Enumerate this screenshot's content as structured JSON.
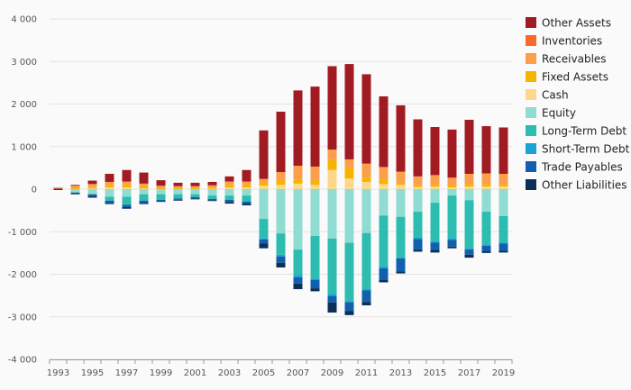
{
  "chart_data": {
    "type": "bar",
    "stacked": true,
    "categories": [
      "1993",
      "1994",
      "1995",
      "1996",
      "1997",
      "1998",
      "1999",
      "2000",
      "2001",
      "2002",
      "2003",
      "2004",
      "2005",
      "2006",
      "2007",
      "2008",
      "2009",
      "2010",
      "2011",
      "2012",
      "2013",
      "2014",
      "2015",
      "2016",
      "2017",
      "2018",
      "2019"
    ],
    "x_tick_labels": [
      "1993",
      "1995",
      "1997",
      "1999",
      "2001",
      "2003",
      "2005",
      "2007",
      "2009",
      "2011",
      "2013",
      "2015",
      "2017",
      "2019"
    ],
    "ylim": [
      -4000,
      4000
    ],
    "y_ticks": [
      -4000,
      -3000,
      -2000,
      -1000,
      0,
      1000,
      2000,
      3000,
      4000
    ],
    "y_tick_labels": [
      "-4 000",
      "-3 000",
      "-2 000",
      "-1 000",
      "0",
      "1 000",
      "2 000",
      "3 000",
      "4 000"
    ],
    "grid": true,
    "legend_position": "right",
    "positive_series": [
      {
        "name": "Cash",
        "color": "#fdd78a",
        "values": [
          0,
          0,
          20,
          40,
          40,
          20,
          0,
          0,
          0,
          10,
          40,
          40,
          80,
          100,
          130,
          100,
          450,
          250,
          170,
          120,
          100,
          50,
          60,
          40,
          60,
          60,
          60
        ]
      },
      {
        "name": "Fixed Assets",
        "color": "#f5b400",
        "values": [
          5,
          20,
          40,
          50,
          60,
          50,
          20,
          20,
          20,
          30,
          60,
          60,
          80,
          100,
          100,
          100,
          230,
          250,
          100,
          100,
          50,
          50,
          50,
          50,
          60,
          60,
          50
        ]
      },
      {
        "name": "Receivables",
        "color": "#fc9f4a",
        "values": [
          5,
          60,
          60,
          80,
          80,
          60,
          60,
          50,
          50,
          50,
          80,
          80,
          80,
          200,
          320,
          330,
          250,
          200,
          330,
          300,
          260,
          200,
          220,
          180,
          240,
          250,
          250
        ]
      },
      {
        "name": "Inventories",
        "color": "#fb6a28",
        "values": [
          0,
          0,
          0,
          0,
          0,
          0,
          0,
          0,
          0,
          0,
          0,
          0,
          0,
          0,
          0,
          0,
          0,
          0,
          0,
          0,
          0,
          0,
          0,
          0,
          0,
          0,
          0
        ]
      },
      {
        "name": "Other Assets",
        "color": "#a01c22",
        "values": [
          20,
          20,
          80,
          190,
          270,
          260,
          130,
          80,
          80,
          80,
          120,
          270,
          1140,
          1420,
          1770,
          1880,
          1960,
          2240,
          2100,
          1660,
          1560,
          1340,
          1130,
          1130,
          1270,
          1110,
          1090
        ]
      }
    ],
    "negative_series": [
      {
        "name": "Equity",
        "color": "#8fdcd3",
        "values": [
          0,
          -80,
          -120,
          -180,
          -180,
          -120,
          -120,
          -120,
          -120,
          -150,
          -150,
          -150,
          -700,
          -1040,
          -1420,
          -1100,
          -1160,
          -1260,
          -1030,
          -620,
          -650,
          -530,
          -320,
          -150,
          -260,
          -530,
          -630
        ]
      },
      {
        "name": "Long-Term Debt",
        "color": "#2dbdb0",
        "values": [
          0,
          0,
          0,
          -90,
          -190,
          -150,
          -130,
          -100,
          -70,
          -80,
          -100,
          -140,
          -450,
          -500,
          -600,
          -1000,
          -1300,
          -1360,
          -1320,
          -1200,
          -960,
          -600,
          -900,
          -1000,
          -1130,
          -770,
          -620
        ]
      },
      {
        "name": "Short-Term Debt",
        "color": "#1aa3d4",
        "values": [
          0,
          0,
          0,
          0,
          0,
          0,
          0,
          0,
          0,
          0,
          0,
          0,
          -30,
          -40,
          -50,
          -30,
          -50,
          -40,
          -30,
          -40,
          -20,
          -40,
          -40,
          -40,
          -30,
          -30,
          -30
        ]
      },
      {
        "name": "Trade Payables",
        "color": "#1060ad",
        "values": [
          0,
          -15,
          -50,
          -50,
          -50,
          -50,
          -30,
          -30,
          -30,
          -30,
          -50,
          -50,
          -100,
          -150,
          -150,
          -200,
          -150,
          -200,
          -270,
          -270,
          -300,
          -250,
          -170,
          -160,
          -120,
          -130,
          -170
        ]
      },
      {
        "name": "Other Liabilities",
        "color": "#0c2f57",
        "values": [
          -20,
          -25,
          -30,
          -30,
          -40,
          -30,
          -20,
          -20,
          -20,
          -20,
          -40,
          -40,
          -110,
          -110,
          -130,
          -70,
          -240,
          -100,
          -80,
          -60,
          -50,
          -50,
          -60,
          -40,
          -70,
          -40,
          -40
        ]
      }
    ],
    "legend": [
      {
        "name": "Other Assets",
        "color": "#a01c22"
      },
      {
        "name": "Inventories",
        "color": "#fb6a28"
      },
      {
        "name": "Receivables",
        "color": "#fc9f4a"
      },
      {
        "name": "Fixed Assets",
        "color": "#f5b400"
      },
      {
        "name": "Cash",
        "color": "#fdd78a"
      },
      {
        "name": "Equity",
        "color": "#8fdcd3"
      },
      {
        "name": "Long-Term Debt",
        "color": "#2dbdb0"
      },
      {
        "name": "Short-Term Debt",
        "color": "#1aa3d4"
      },
      {
        "name": "Trade Payables",
        "color": "#1060ad"
      },
      {
        "name": "Other Liabilities",
        "color": "#0c2f57"
      }
    ],
    "gridline_color": "#e3e3e3",
    "axis_color": "#9a9a9a"
  }
}
